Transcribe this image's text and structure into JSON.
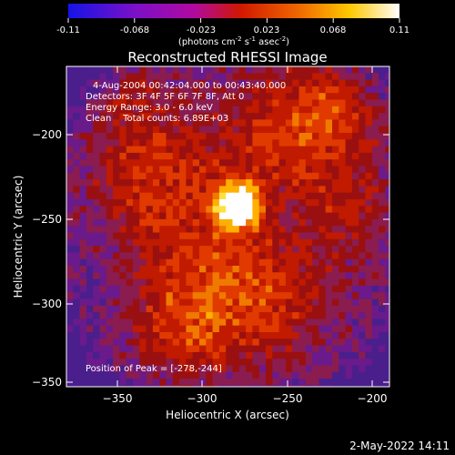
{
  "colorbar": {
    "ticks": [
      "-0.11",
      "-0.068",
      "-0.023",
      "0.023",
      "0.068",
      "0.11"
    ],
    "unit_main": "(photons cm",
    "unit_exp1": "-2",
    "unit_mid": " s",
    "unit_exp2": "-1",
    "unit_end": " asec",
    "unit_exp3": "-2",
    "unit_close": ")",
    "colors": [
      "#1414e6",
      "#7b10c8",
      "#b00aa0",
      "#d01800",
      "#f06a00",
      "#ffc800",
      "#ffffff"
    ]
  },
  "chart_data": {
    "type": "heatmap",
    "title": "Reconstructed RHESSI Image",
    "xlabel": "Heliocentric X (arcsec)",
    "ylabel": "Heliocentric Y (arcsec)",
    "xlim": [
      -378,
      -188
    ],
    "ylim": [
      -352,
      -163
    ],
    "x_ticks": [
      -350,
      -300,
      -250,
      -200
    ],
    "y_ticks": [
      -200,
      -250,
      -300,
      -350
    ],
    "x_tick_labels": [
      "−350",
      "−300",
      "−250",
      "−200"
    ],
    "y_tick_labels": [
      "−200",
      "−250",
      "−300",
      "−350"
    ],
    "info_lines": [
      "4-Aug-2004 00:42:04.000 to 00:43:40.000",
      "Detectors: 3F 4F 5F 6F 7F 8F, Att 0",
      "Energy Range: 3.0 - 6.0 keV",
      "Clean    Total counts: 6.89E+03"
    ],
    "peak_label": "Position of Peak = [-278,-244]",
    "peak": [
      -278,
      -244
    ],
    "colorbar_range": [
      -0.11,
      0.11
    ]
  },
  "footer": {
    "date": "2-May-2022 14:11"
  }
}
